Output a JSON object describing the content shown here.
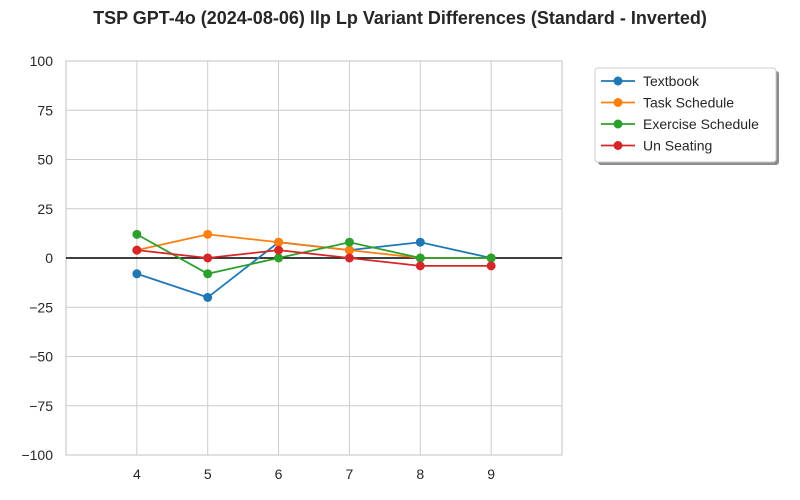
{
  "chart_data": {
    "type": "line",
    "title": "TSP GPT-4o (2024-08-06) llp Lp Variant Differences (Standard - Inverted)",
    "xlabel": "",
    "ylabel": "",
    "x": [
      4,
      5,
      6,
      7,
      8,
      9
    ],
    "xlim": [
      3,
      10
    ],
    "ylim": [
      -100,
      100
    ],
    "x_ticks": [
      4,
      5,
      6,
      7,
      8,
      9
    ],
    "y_ticks": [
      100,
      75,
      50,
      25,
      0,
      -25,
      -50,
      -75,
      -100
    ],
    "y_tick_labels": [
      "100",
      "75",
      "50",
      "25",
      "0",
      "−25",
      "−50",
      "−75",
      "−100"
    ],
    "grid": true,
    "zero_line": true,
    "legend_position": "outside-top-right",
    "series": [
      {
        "name": "Textbook",
        "color": "#1f77b4",
        "values": [
          -8,
          -20,
          8,
          4,
          8,
          0
        ]
      },
      {
        "name": "Task Schedule",
        "color": "#ff7f0e",
        "values": [
          4,
          12,
          8,
          4,
          0,
          0
        ]
      },
      {
        "name": "Exercise Schedule",
        "color": "#2ca02c",
        "values": [
          12,
          -8,
          0,
          8,
          0,
          0
        ]
      },
      {
        "name": "Un Seating",
        "color": "#d62728",
        "values": [
          4,
          0,
          4,
          0,
          -4,
          -4
        ]
      }
    ]
  }
}
